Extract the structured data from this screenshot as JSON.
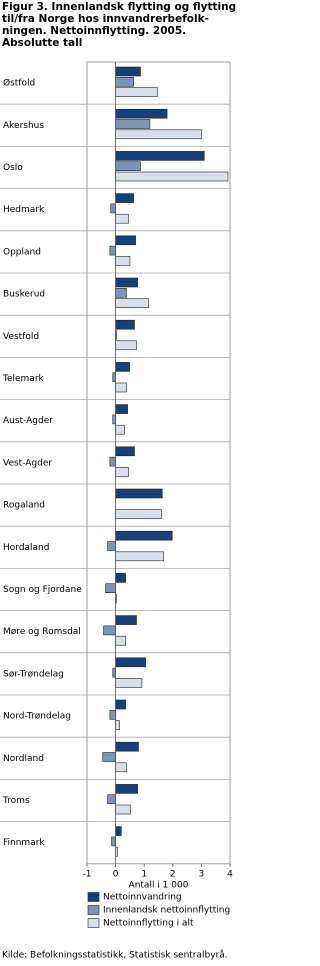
{
  "chart_data": {
    "type": "hbar",
    "title": [
      "Figur 3. Innenlandsk flytting og flytting",
      "til/fra Norge hos innvandrerbefolk-",
      "ningen. Nettoinnflytting. 2005.",
      "Absolutte tall"
    ],
    "categories": [
      "Østfold",
      "Akershus",
      "Oslo",
      "Hedmark",
      "Oppland",
      "Buskerud",
      "Vestfold",
      "Telemark",
      "Aust-Agder",
      "Vest-Agder",
      "Rogaland",
      "Hordaland",
      "Sogn og Fjordane",
      "Møre og Romsdal",
      "Sør-Trøndelag",
      "Nord-Trøndelag",
      "Nordland",
      "Troms",
      "Finnmark"
    ],
    "series": [
      {
        "name": "Nettoinnvandring",
        "color": "#173f7a",
        "values": [
          0.87,
          1.8,
          3.1,
          0.63,
          0.7,
          0.77,
          0.66,
          0.49,
          0.42,
          0.66,
          1.63,
          1.98,
          0.35,
          0.73,
          1.05,
          0.35,
          0.8,
          0.77,
          0.2
        ]
      },
      {
        "name": "Innenlandsk nettoinnflytting",
        "color": "#7d93b8",
        "values": [
          0.63,
          1.2,
          0.87,
          -0.17,
          -0.2,
          0.38,
          0.03,
          -0.1,
          -0.1,
          -0.2,
          0,
          -0.28,
          -0.35,
          -0.42,
          -0.1,
          -0.2,
          -0.45,
          -0.28,
          -0.14
        ]
      },
      {
        "name": "Nettoinnflytting i alt",
        "color": "#d8dfea",
        "values": [
          1.46,
          3.0,
          3.93,
          0.45,
          0.5,
          1.15,
          0.73,
          0.38,
          0.31,
          0.45,
          1.6,
          1.68,
          0.03,
          0.35,
          0.92,
          0.14,
          0.38,
          0.52,
          0.07
        ]
      }
    ],
    "xlim": [
      -1,
      4
    ],
    "xticks": [
      -1,
      0,
      1,
      2,
      3,
      4
    ],
    "xlabel": "Antall i 1 000",
    "source": "Kilde: Befolkningsstatistikk, Statistisk sentralbyrå."
  }
}
